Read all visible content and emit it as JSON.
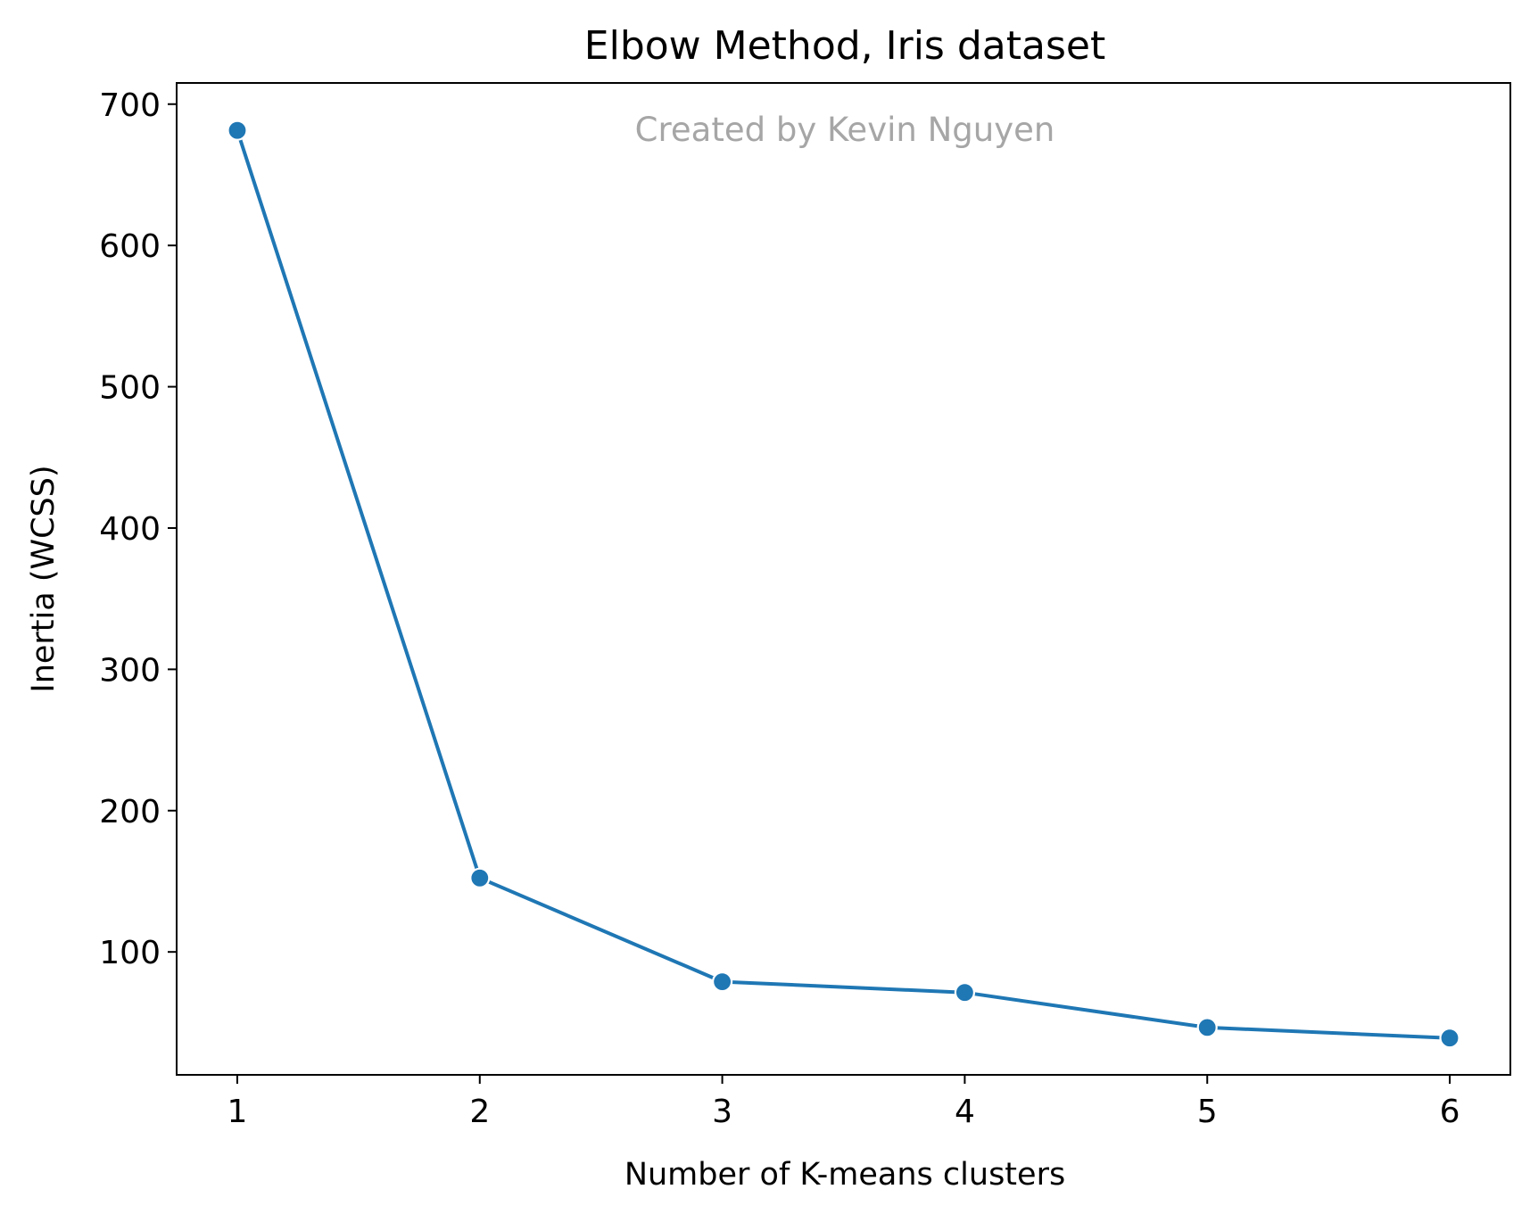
{
  "chart_data": {
    "type": "line",
    "title": "Elbow Method, Iris dataset",
    "annotation": "Created by Kevin Nguyen",
    "xlabel": "Number of K-means clusters",
    "ylabel": "Inertia (WCSS)",
    "x": [
      1,
      2,
      3,
      4,
      5,
      6
    ],
    "xticks": [
      "1",
      "2",
      "3",
      "4",
      "5",
      "6"
    ],
    "yticks": [
      "100",
      "200",
      "300",
      "400",
      "500",
      "600",
      "700"
    ],
    "xlim": [
      0.75,
      6.25
    ],
    "ylim": [
      13,
      715
    ],
    "grid": false,
    "legend": "none",
    "series": [
      {
        "values": [
          681.4,
          152.3,
          78.9,
          71.3,
          46.5,
          39.1
        ],
        "color": "#1f77b4",
        "marker": "circle"
      }
    ]
  }
}
